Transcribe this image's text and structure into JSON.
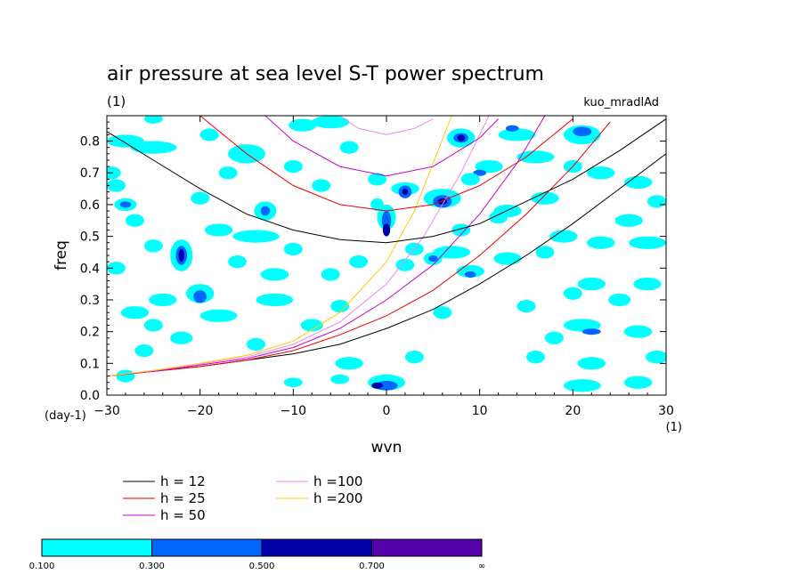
{
  "chart_data": {
    "type": "heatmap",
    "title": "air pressure at sea level S-T power spectrum",
    "subtitle_left": "(1)",
    "subtitle_right": "kuo_mradlAd",
    "xlabel": "wvn",
    "ylabel": "freq",
    "x_unit": "(1)",
    "y_unit": "(day-1)",
    "xlim": [
      -30,
      30
    ],
    "ylim": [
      0,
      0.88
    ],
    "x_ticks": [
      "−30",
      "−20",
      "−10",
      "0",
      "10",
      "20",
      "30"
    ],
    "y_ticks": [
      "0.0",
      "0.1",
      "0.2",
      "0.3",
      "0.4",
      "0.5",
      "0.6",
      "0.7",
      "0.8"
    ],
    "contour_levels": [
      {
        "label": "0.100",
        "color": "#00ffff"
      },
      {
        "label": "0.300",
        "color": "#0066ff"
      },
      {
        "label": "0.500",
        "color": "#0000aa"
      },
      {
        "label": "0.700",
        "color": "#5500aa"
      },
      {
        "label": "∞",
        "color": null
      }
    ],
    "series": [
      {
        "name": "h = 12",
        "color": "#000000"
      },
      {
        "name": "h = 25",
        "color": "#ee0000"
      },
      {
        "name": "h = 50",
        "color": "#cc00cc"
      },
      {
        "name": "h =100",
        "color": "#ee88ee"
      },
      {
        "name": "h =200",
        "color": "#ffcc00"
      }
    ],
    "curves": [
      {
        "series": 0,
        "kind": "eig",
        "points": [
          [
            -30,
            0.06
          ],
          [
            -25,
            0.075
          ],
          [
            -20,
            0.09
          ],
          [
            -15,
            0.11
          ],
          [
            -10,
            0.13
          ],
          [
            -5,
            0.16
          ],
          [
            0,
            0.21
          ],
          [
            5,
            0.27
          ],
          [
            10,
            0.35
          ],
          [
            15,
            0.44
          ],
          [
            20,
            0.54
          ],
          [
            25,
            0.65
          ],
          [
            30,
            0.76
          ]
        ]
      },
      {
        "series": 1,
        "kind": "eig",
        "points": [
          [
            -30,
            0.06
          ],
          [
            -25,
            0.075
          ],
          [
            -20,
            0.09
          ],
          [
            -15,
            0.11
          ],
          [
            -10,
            0.14
          ],
          [
            -5,
            0.19
          ],
          [
            0,
            0.25
          ],
          [
            5,
            0.33
          ],
          [
            10,
            0.44
          ],
          [
            15,
            0.57
          ],
          [
            20,
            0.72
          ],
          [
            24,
            0.86
          ]
        ]
      },
      {
        "series": 2,
        "kind": "eig",
        "points": [
          [
            -30,
            0.06
          ],
          [
            -25,
            0.075
          ],
          [
            -20,
            0.095
          ],
          [
            -15,
            0.115
          ],
          [
            -10,
            0.15
          ],
          [
            -5,
            0.21
          ],
          [
            0,
            0.3
          ],
          [
            5,
            0.41
          ],
          [
            10,
            0.57
          ],
          [
            14,
            0.73
          ],
          [
            17,
            0.88
          ]
        ]
      },
      {
        "series": 3,
        "kind": "eig",
        "points": [
          [
            -30,
            0.06
          ],
          [
            -25,
            0.077
          ],
          [
            -20,
            0.098
          ],
          [
            -15,
            0.12
          ],
          [
            -10,
            0.16
          ],
          [
            -5,
            0.23
          ],
          [
            0,
            0.35
          ],
          [
            4,
            0.5
          ],
          [
            8,
            0.7
          ],
          [
            11,
            0.88
          ]
        ]
      },
      {
        "series": 4,
        "kind": "eig",
        "points": [
          [
            -30,
            0.06
          ],
          [
            -25,
            0.078
          ],
          [
            -20,
            0.1
          ],
          [
            -15,
            0.125
          ],
          [
            -10,
            0.17
          ],
          [
            -5,
            0.26
          ],
          [
            0,
            0.42
          ],
          [
            3,
            0.58
          ],
          [
            5,
            0.73
          ],
          [
            7,
            0.88
          ]
        ]
      },
      {
        "series": 0,
        "kind": "ig",
        "points": [
          [
            -30,
            0.83
          ],
          [
            -25,
            0.74
          ],
          [
            -20,
            0.65
          ],
          [
            -15,
            0.57
          ],
          [
            -10,
            0.52
          ],
          [
            -5,
            0.49
          ],
          [
            0,
            0.48
          ],
          [
            5,
            0.5
          ],
          [
            10,
            0.54
          ],
          [
            15,
            0.61
          ],
          [
            20,
            0.68
          ],
          [
            25,
            0.77
          ],
          [
            30,
            0.87
          ]
        ]
      },
      {
        "series": 1,
        "kind": "ig",
        "points": [
          [
            -20,
            0.88
          ],
          [
            -15,
            0.76
          ],
          [
            -10,
            0.66
          ],
          [
            -5,
            0.6
          ],
          [
            0,
            0.58
          ],
          [
            5,
            0.6
          ],
          [
            10,
            0.66
          ],
          [
            15,
            0.75
          ],
          [
            20,
            0.87
          ]
        ]
      },
      {
        "series": 2,
        "kind": "ig",
        "points": [
          [
            -13,
            0.88
          ],
          [
            -10,
            0.8
          ],
          [
            -5,
            0.72
          ],
          [
            0,
            0.69
          ],
          [
            5,
            0.72
          ],
          [
            10,
            0.81
          ],
          [
            12,
            0.87
          ]
        ]
      },
      {
        "series": 3,
        "kind": "ig",
        "points": [
          [
            -5,
            0.88
          ],
          [
            -3,
            0.84
          ],
          [
            0,
            0.82
          ],
          [
            3,
            0.84
          ],
          [
            5,
            0.87
          ]
        ]
      }
    ],
    "blobs": [
      [
        -28,
        0.8,
        2,
        0.02,
        0
      ],
      [
        -25,
        0.78,
        2.5,
        0.02,
        0
      ],
      [
        -29.5,
        0.7,
        1,
        0.02,
        0
      ],
      [
        -29,
        0.66,
        1,
        0.02,
        0
      ],
      [
        -28,
        0.6,
        1.2,
        0.02,
        0
      ],
      [
        -28,
        0.6,
        0.6,
        0.01,
        1
      ],
      [
        -27,
        0.55,
        1,
        0.02,
        0
      ],
      [
        -25,
        0.47,
        1,
        0.02,
        0
      ],
      [
        -22,
        0.44,
        1.2,
        0.05,
        0
      ],
      [
        -22,
        0.44,
        0.6,
        0.03,
        1
      ],
      [
        -22,
        0.44,
        0.3,
        0.02,
        2
      ],
      [
        -20,
        0.32,
        1.5,
        0.03,
        0
      ],
      [
        -20,
        0.31,
        0.7,
        0.02,
        1
      ],
      [
        -22,
        0.18,
        1.2,
        0.02,
        0
      ],
      [
        -26,
        0.14,
        1,
        0.02,
        0
      ],
      [
        -28,
        0.06,
        1,
        0.02,
        0
      ],
      [
        -25,
        0.87,
        1,
        0.015,
        0
      ],
      [
        -15,
        0.76,
        2,
        0.03,
        0
      ],
      [
        -10,
        0.72,
        1,
        0.02,
        0
      ],
      [
        -17,
        0.7,
        1,
        0.02,
        0
      ],
      [
        -20,
        0.62,
        1,
        0.02,
        0
      ],
      [
        -13,
        0.58,
        1.2,
        0.03,
        0
      ],
      [
        -13,
        0.58,
        0.5,
        0.015,
        1
      ],
      [
        -14,
        0.5,
        2.5,
        0.02,
        0
      ],
      [
        -10,
        0.46,
        1,
        0.02,
        0
      ],
      [
        -12,
        0.38,
        1.5,
        0.02,
        0
      ],
      [
        -6,
        0.38,
        1,
        0.02,
        0
      ],
      [
        -18,
        0.25,
        2,
        0.02,
        0
      ],
      [
        -12,
        0.3,
        2,
        0.02,
        0
      ],
      [
        -5,
        0.28,
        1,
        0.02,
        0
      ],
      [
        -8,
        0.22,
        1.2,
        0.02,
        0
      ],
      [
        -14,
        0.16,
        1,
        0.02,
        0
      ],
      [
        -4,
        0.1,
        1.5,
        0.02,
        0
      ],
      [
        -9,
        0.85,
        1.5,
        0.02,
        0
      ],
      [
        -4,
        0.78,
        1,
        0.02,
        0
      ],
      [
        -6,
        0.86,
        2,
        0.02,
        0
      ],
      [
        -1,
        0.68,
        1,
        0.02,
        0
      ],
      [
        2,
        0.65,
        1.5,
        0.02,
        0
      ],
      [
        2,
        0.64,
        0.7,
        0.02,
        1
      ],
      [
        2,
        0.64,
        0.3,
        0.01,
        2
      ],
      [
        0,
        0.56,
        1,
        0.04,
        0
      ],
      [
        0,
        0.55,
        0.5,
        0.03,
        1
      ],
      [
        -1,
        0.6,
        0.7,
        0.02,
        0
      ],
      [
        0,
        0.52,
        0.4,
        0.02,
        2
      ],
      [
        3,
        0.46,
        1,
        0.02,
        0
      ],
      [
        5,
        0.43,
        1,
        0.02,
        0
      ],
      [
        5,
        0.43,
        0.5,
        0.01,
        1
      ],
      [
        2,
        0.41,
        1,
        0.02,
        0
      ],
      [
        7,
        0.45,
        2,
        0.02,
        0
      ],
      [
        6,
        0.62,
        2,
        0.03,
        0
      ],
      [
        6,
        0.61,
        1,
        0.02,
        1
      ],
      [
        6,
        0.61,
        0.5,
        0.01,
        2
      ],
      [
        8,
        0.52,
        1,
        0.02,
        0
      ],
      [
        8,
        0.81,
        1.5,
        0.03,
        0
      ],
      [
        8,
        0.81,
        0.8,
        0.015,
        1
      ],
      [
        8,
        0.81,
        0.4,
        0.01,
        2
      ],
      [
        11,
        0.72,
        1.5,
        0.02,
        0
      ],
      [
        10,
        0.7,
        0.7,
        0.01,
        1
      ],
      [
        9,
        0.68,
        1,
        0.02,
        0
      ],
      [
        13,
        0.58,
        1.5,
        0.02,
        0
      ],
      [
        14,
        0.82,
        2,
        0.02,
        0
      ],
      [
        13.5,
        0.84,
        0.7,
        0.01,
        1
      ],
      [
        12,
        0.56,
        1,
        0.02,
        0
      ],
      [
        16,
        0.75,
        2,
        0.02,
        0
      ],
      [
        17,
        0.62,
        1.5,
        0.02,
        0
      ],
      [
        20,
        0.72,
        1,
        0.02,
        0
      ],
      [
        21,
        0.82,
        2,
        0.03,
        0
      ],
      [
        21,
        0.83,
        1,
        0.015,
        1
      ],
      [
        18,
        0.9,
        1,
        0.01,
        0
      ],
      [
        23,
        0.7,
        1.5,
        0.02,
        0
      ],
      [
        27,
        0.67,
        1.5,
        0.02,
        0
      ],
      [
        29,
        0.61,
        1,
        0.02,
        0
      ],
      [
        26,
        0.55,
        1.5,
        0.02,
        0
      ],
      [
        28,
        0.48,
        2,
        0.02,
        0
      ],
      [
        23,
        0.48,
        1.5,
        0.02,
        0
      ],
      [
        19,
        0.5,
        1.5,
        0.02,
        0
      ],
      [
        17,
        0.45,
        1,
        0.02,
        0
      ],
      [
        13,
        0.43,
        1.5,
        0.02,
        0
      ],
      [
        9,
        0.39,
        1.5,
        0.02,
        0
      ],
      [
        9,
        0.38,
        0.6,
        0.01,
        1
      ],
      [
        22,
        0.35,
        1.5,
        0.02,
        0
      ],
      [
        28,
        0.35,
        1.5,
        0.02,
        0
      ],
      [
        25,
        0.3,
        1.2,
        0.02,
        0
      ],
      [
        20,
        0.32,
        1,
        0.02,
        0
      ],
      [
        21,
        0.22,
        2,
        0.02,
        0
      ],
      [
        22,
        0.2,
        1,
        0.01,
        1
      ],
      [
        27,
        0.2,
        1.5,
        0.02,
        0
      ],
      [
        29,
        0.12,
        1.2,
        0.02,
        0
      ],
      [
        22,
        0.1,
        1.5,
        0.02,
        0
      ],
      [
        27,
        0.04,
        1.5,
        0.02,
        0
      ],
      [
        21,
        0.03,
        2,
        0.02,
        0
      ],
      [
        18,
        0.18,
        1,
        0.02,
        0
      ],
      [
        16,
        0.12,
        1,
        0.02,
        0
      ],
      [
        0,
        0.04,
        2,
        0.025,
        0
      ],
      [
        0,
        0.03,
        1.2,
        0.015,
        1
      ],
      [
        -1,
        0.03,
        0.6,
        0.01,
        2
      ],
      [
        -5,
        0.05,
        1,
        0.015,
        0
      ],
      [
        -10,
        0.04,
        1,
        0.015,
        0
      ],
      [
        3,
        0.12,
        1,
        0.02,
        0
      ],
      [
        -3,
        0.42,
        1,
        0.02,
        0
      ],
      [
        -27,
        0.26,
        1.5,
        0.02,
        0
      ],
      [
        -29,
        0.4,
        1,
        0.02,
        0
      ],
      [
        -24,
        0.3,
        1.5,
        0.02,
        0
      ],
      [
        -18,
        0.52,
        1.5,
        0.02,
        0
      ],
      [
        -25,
        0.22,
        1,
        0.02,
        0
      ],
      [
        15,
        0.28,
        1,
        0.02,
        0
      ],
      [
        6,
        0.26,
        1,
        0.02,
        0
      ],
      [
        -16,
        0.42,
        1,
        0.02,
        0
      ],
      [
        -7,
        0.66,
        1,
        0.02,
        0
      ],
      [
        -19,
        0.82,
        1,
        0.02,
        0
      ]
    ],
    "axis_range_note": ""
  }
}
